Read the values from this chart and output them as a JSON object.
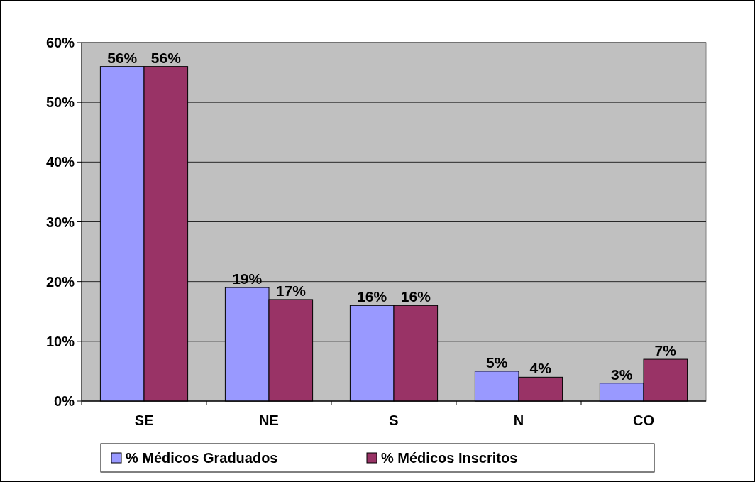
{
  "chart_data": {
    "type": "bar",
    "categories": [
      "SE",
      "NE",
      "S",
      "N",
      "CO"
    ],
    "series": [
      {
        "name": "% Médicos Graduados",
        "color": "#9999ff",
        "values": [
          56,
          19,
          16,
          5,
          3
        ],
        "value_labels": [
          "56%",
          "19%",
          "16%",
          "5%",
          "3%"
        ]
      },
      {
        "name": "% Médicos Inscritos",
        "color": "#993366",
        "values": [
          56,
          17,
          16,
          4,
          7
        ],
        "value_labels": [
          "56%",
          "17%",
          "16%",
          "4%",
          "7%"
        ]
      }
    ],
    "ylim": [
      0,
      60
    ],
    "yticks": [
      {
        "value": 0,
        "label": "0%"
      },
      {
        "value": 10,
        "label": "10%"
      },
      {
        "value": 20,
        "label": "20%"
      },
      {
        "value": 30,
        "label": "30%"
      },
      {
        "value": 40,
        "label": "40%"
      },
      {
        "value": 50,
        "label": "50%"
      },
      {
        "value": 60,
        "label": "60%"
      }
    ],
    "grid": "y",
    "legend": "bottom"
  }
}
